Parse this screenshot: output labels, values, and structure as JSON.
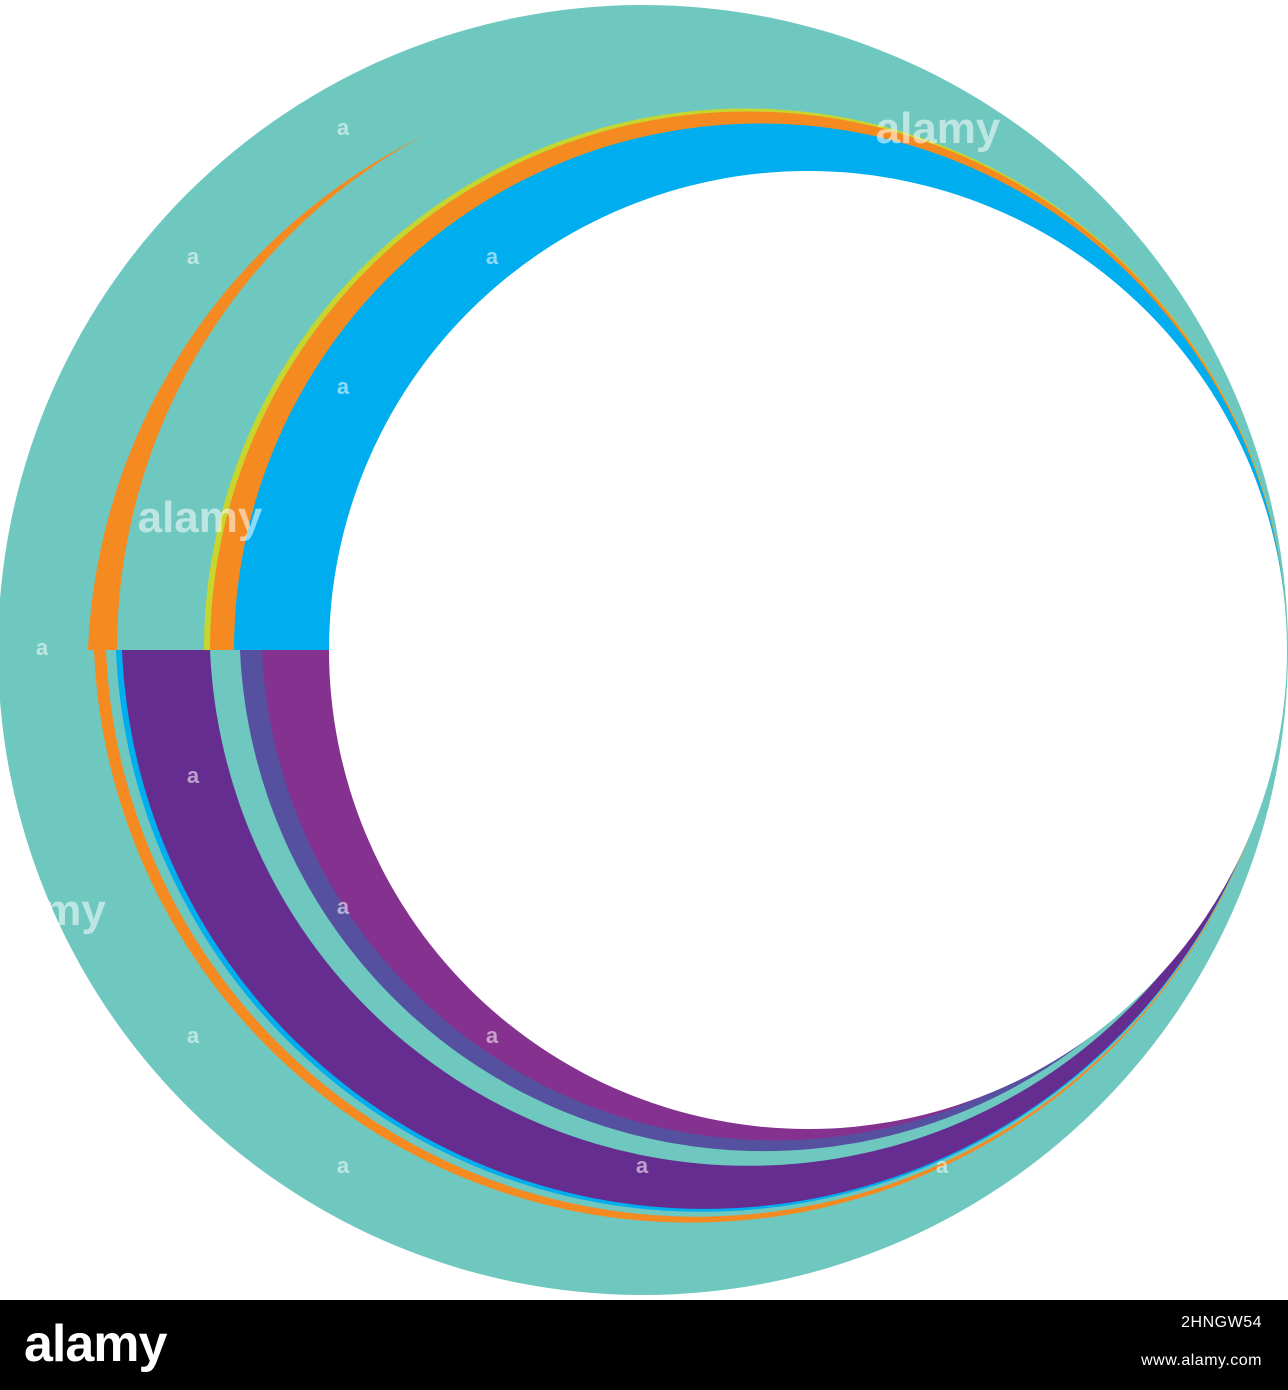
{
  "footer": {
    "logo": "alamy",
    "image_id": "2HNGW54",
    "url": "www.alamy.com"
  },
  "watermark": {
    "large": "alamy",
    "partial": "my",
    "small": "a"
  },
  "colors": {
    "background": "#ffffff",
    "teal": "#6ec8bf",
    "orange": "#f58a20",
    "lime": "#c6d62e",
    "blue": "#00aeef",
    "purple": "#662d91",
    "magenta": "#85318f",
    "indigo": "#55509f",
    "footer_background": "#000000",
    "footer_text": "#ffffff"
  }
}
